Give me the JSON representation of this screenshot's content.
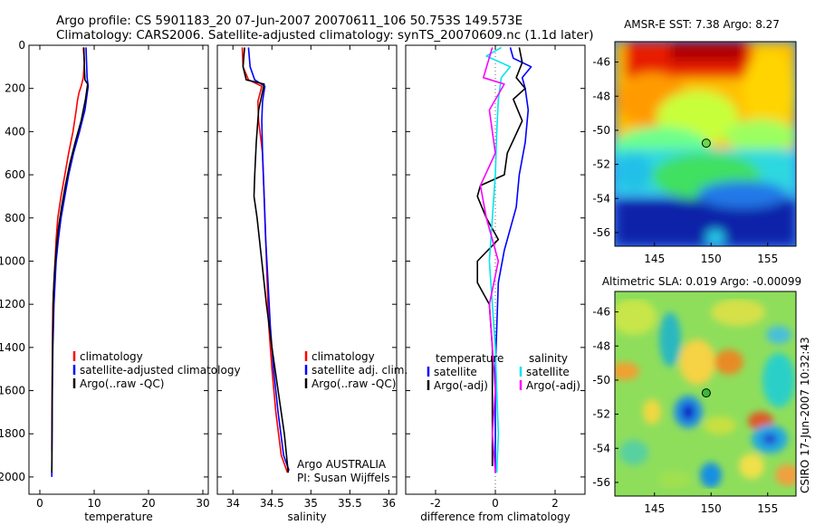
{
  "header": {
    "line1": "Argo profile: CS 5901183_20 07-Jun-2007 20070611_106 50.753S 149.573E",
    "line2": "Climatology: CARS2006. Satellite-adjusted climatology: synTS_20070609.nc (1.1d later)"
  },
  "side_label": "CSIRO 17-Jun-2007 10:32:43",
  "colors": {
    "climatology": "#ff0000",
    "satellite": "#0000ff",
    "argo": "#000000",
    "salinity_sat": "#00e5ee",
    "salinity_argo": "#ff00ff"
  },
  "chart_data": [
    {
      "type": "line",
      "id": "temperature",
      "xlabel": "temperature",
      "xlim": [
        -2,
        31
      ],
      "ylim": [
        0,
        2080
      ],
      "xticks": [
        0,
        10,
        20,
        30
      ],
      "yticks": [
        0,
        200,
        400,
        600,
        800,
        1000,
        1200,
        1400,
        1600,
        1800,
        2000
      ],
      "y_reversed": true,
      "legend": [
        "climatology",
        "satellite-adjusted climatology",
        "Argo(..raw -QC)"
      ],
      "series": [
        {
          "name": "climatology",
          "color": "#ff0000",
          "x": [
            8.0,
            8.2,
            8.0,
            7.6,
            7.2,
            6.9,
            6.7,
            6.1,
            5.3,
            4.6,
            3.9,
            3.3,
            3.0,
            2.8,
            2.6,
            2.4,
            2.3,
            2.2
          ],
          "y": [
            10,
            80,
            150,
            190,
            220,
            260,
            300,
            400,
            500,
            600,
            700,
            800,
            900,
            1000,
            1100,
            1200,
            1400,
            1880
          ]
        },
        {
          "name": "satellite-adjusted climatology",
          "color": "#0000ff",
          "x": [
            8.5,
            8.6,
            8.7,
            8.9,
            8.3,
            7.3,
            6.2,
            5.3,
            4.6,
            3.9,
            3.4,
            3.0,
            2.8,
            2.6,
            2.4,
            2.3,
            2.2
          ],
          "y": [
            10,
            80,
            150,
            190,
            300,
            400,
            500,
            600,
            700,
            800,
            900,
            1000,
            1100,
            1200,
            1400,
            1600,
            2000
          ]
        },
        {
          "name": "Argo(..raw -QC)",
          "color": "#000000",
          "x": [
            8.1,
            8.2,
            8.3,
            8.8,
            8.4,
            7.6,
            6.5,
            5.5,
            4.7,
            4.0,
            3.4,
            3.0,
            2.7,
            2.5,
            2.4,
            2.3,
            2.2
          ],
          "y": [
            10,
            100,
            160,
            180,
            250,
            350,
            450,
            550,
            650,
            750,
            850,
            950,
            1050,
            1150,
            1300,
            1500,
            1980
          ]
        }
      ]
    },
    {
      "type": "line",
      "id": "salinity",
      "xlabel": "salinity",
      "xlim": [
        33.8,
        36.1
      ],
      "ylim": [
        0,
        2080
      ],
      "xticks": [
        34,
        34.5,
        35,
        35.5,
        36
      ],
      "y_reversed": true,
      "legend": [
        "climatology",
        "satellite adj. clim.",
        "Argo(..raw -QC)"
      ],
      "annotation": [
        "Argo AUSTRALIA",
        "PI: Susan Wijffels"
      ],
      "series": [
        {
          "name": "climatology",
          "color": "#ff0000",
          "x": [
            34.12,
            34.13,
            34.2,
            34.37,
            34.32,
            34.33,
            34.38,
            34.4,
            34.42,
            34.44,
            34.46,
            34.5,
            34.55,
            34.62,
            34.7
          ],
          "y": [
            10,
            100,
            160,
            190,
            260,
            350,
            500,
            700,
            900,
            1100,
            1300,
            1500,
            1700,
            1900,
            1980
          ]
        },
        {
          "name": "satellite adj. clim.",
          "color": "#0000ff",
          "x": [
            34.2,
            34.22,
            34.28,
            34.41,
            34.38,
            34.37,
            34.38,
            34.4,
            34.42,
            34.45,
            34.48,
            34.52,
            34.58,
            34.65,
            34.72
          ],
          "y": [
            10,
            100,
            160,
            190,
            260,
            350,
            500,
            700,
            900,
            1100,
            1300,
            1500,
            1700,
            1900,
            1970
          ]
        },
        {
          "name": "Argo(..raw -QC)",
          "color": "#000000",
          "x": [
            34.15,
            34.13,
            34.17,
            34.4,
            34.33,
            34.3,
            34.28,
            34.27,
            34.31,
            34.37,
            34.43,
            34.5,
            34.58,
            34.66,
            34.71
          ],
          "y": [
            10,
            100,
            160,
            180,
            300,
            450,
            600,
            700,
            800,
            1000,
            1200,
            1400,
            1600,
            1800,
            1980
          ]
        }
      ]
    },
    {
      "type": "line",
      "id": "difference",
      "xlabel": "difference from climatology",
      "xlim": [
        -3,
        3
      ],
      "ylim": [
        0,
        2080
      ],
      "xticks": [
        -2,
        0,
        2
      ],
      "y_reversed": true,
      "legend_left": [
        "temperature",
        "satellite",
        "Argo(-adj)"
      ],
      "legend_right": [
        "salinity",
        "satellite",
        "Argo(-adj)"
      ],
      "series": [
        {
          "name": "temperature satellite",
          "color": "#0000ff",
          "x": [
            0.5,
            0.6,
            1.2,
            0.9,
            1.0,
            1.1,
            1.0,
            0.8,
            0.7,
            0.5,
            0.3,
            0.1,
            0.0,
            0.0
          ],
          "y": [
            10,
            60,
            100,
            150,
            200,
            300,
            450,
            600,
            750,
            850,
            950,
            1100,
            1500,
            1980
          ]
        },
        {
          "name": "temperature Argo(-adj)",
          "color": "#000000",
          "x": [
            0.8,
            0.9,
            0.7,
            1.0,
            0.6,
            0.9,
            0.4,
            0.3,
            -0.5,
            -0.6,
            -0.3,
            0.1,
            -0.6,
            -0.6,
            -0.2,
            -0.1,
            -0.1
          ],
          "y": [
            10,
            80,
            150,
            200,
            250,
            350,
            500,
            600,
            650,
            700,
            800,
            900,
            1000,
            1100,
            1200,
            1400,
            1950
          ]
        },
        {
          "name": "salinity satellite",
          "color": "#00e5ee",
          "x": [
            0.2,
            -0.3,
            0.5,
            0.2,
            0.1,
            0.05,
            0.0,
            -0.1,
            -0.2,
            -0.1,
            0.0,
            0.05,
            0.1,
            0.05
          ],
          "y": [
            10,
            50,
            100,
            150,
            250,
            400,
            600,
            800,
            1000,
            1200,
            1400,
            1600,
            1800,
            1980
          ]
        },
        {
          "name": "salinity Argo(-adj)",
          "color": "#ff00ff",
          "x": [
            -0.1,
            -0.4,
            0.3,
            -0.2,
            0.0,
            -0.5,
            -0.3,
            0.1,
            -0.2,
            -0.1,
            0.0,
            -0.1,
            0.0
          ],
          "y": [
            10,
            150,
            180,
            300,
            500,
            650,
            800,
            1000,
            1200,
            1400,
            1600,
            1800,
            1980
          ]
        }
      ]
    },
    {
      "type": "heatmap",
      "id": "sst_map",
      "title": "AMSR-E SST: 7.38 Argo: 8.27",
      "xlim": [
        141.5,
        157.5
      ],
      "ylim": [
        -56.8,
        -44.8
      ],
      "xticks": [
        145,
        150,
        155
      ],
      "yticks": [
        -46,
        -48,
        -50,
        -52,
        -54,
        -56
      ],
      "argo_position": {
        "lon": 149.573,
        "lat": -50.753
      }
    },
    {
      "type": "heatmap",
      "id": "sla_map",
      "title": "Altimetric SLA: 0.019 Argo: -0.00099",
      "xlim": [
        141.5,
        157.5
      ],
      "ylim": [
        -56.8,
        -44.8
      ],
      "xticks": [
        145,
        150,
        155
      ],
      "yticks": [
        -46,
        -48,
        -50,
        -52,
        -54,
        -56
      ],
      "argo_position": {
        "lon": 149.573,
        "lat": -50.753
      }
    }
  ]
}
